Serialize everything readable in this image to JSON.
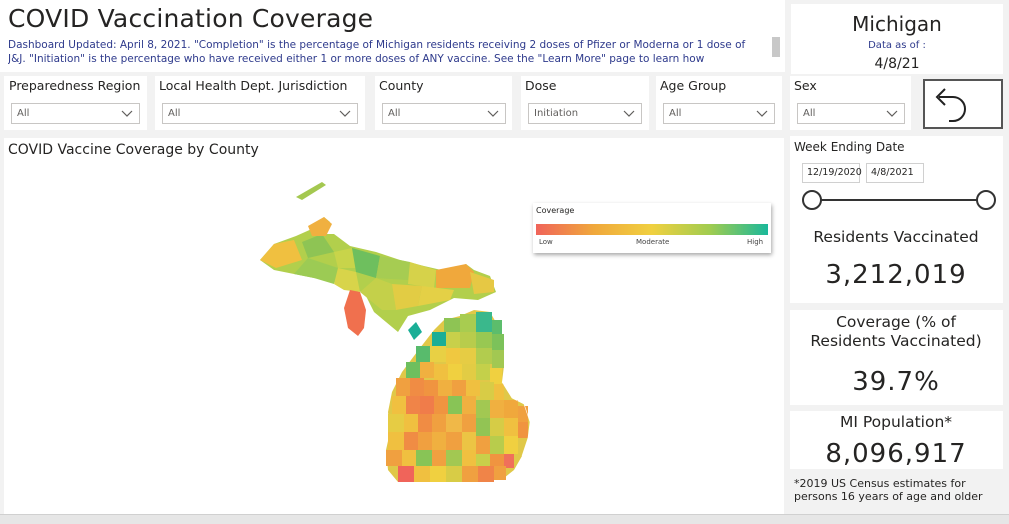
{
  "header": {
    "title": "COVID Vaccination Coverage",
    "description": "Dashboard Updated: April 8, 2021. \"Completion\" is the percentage of Michigan residents receiving 2 doses of Pfizer or Moderna or 1 dose of J&J. \"Initiation\" is the percentage who have received either 1 or more doses of ANY vaccine. See the \"Learn More\" page to learn how"
  },
  "state_card": {
    "name": "Michigan",
    "data_as_of_label": "Data as of :",
    "data_as_of": "4/8/21"
  },
  "filters": [
    {
      "label": "Preparedness Region",
      "value": "All"
    },
    {
      "label": "Local Health Dept. Jurisdiction",
      "value": "All"
    },
    {
      "label": "County",
      "value": "All"
    },
    {
      "label": "Dose",
      "value": "Initiation"
    },
    {
      "label": "Age Group",
      "value": "All"
    },
    {
      "label": "Sex",
      "value": "All"
    }
  ],
  "map": {
    "title": "COVID Vaccine Coverage by County",
    "legend": {
      "title": "Coverage",
      "low": "Low",
      "moderate": "Moderate",
      "high": "High",
      "colors": [
        "#f0645a",
        "#f0a83c",
        "#f0d040",
        "#a0cc50",
        "#1ab89a"
      ]
    }
  },
  "week_filter": {
    "label": "Week Ending Date",
    "start": "12/19/2020",
    "end": "4/8/2021"
  },
  "kpis": {
    "residents_vaccinated_label": "Residents Vaccinated",
    "residents_vaccinated": "3,212,019",
    "coverage_label": "Coverage (% of Residents Vaccinated)",
    "coverage": "39.7%",
    "population_label": "MI Population*",
    "population": "8,096,917"
  },
  "footnote": "*2019 US Census estimates for persons 16 years of age and older",
  "icons": {
    "back": "back-arrow-icon",
    "dropdown": "chevron-down-icon"
  }
}
